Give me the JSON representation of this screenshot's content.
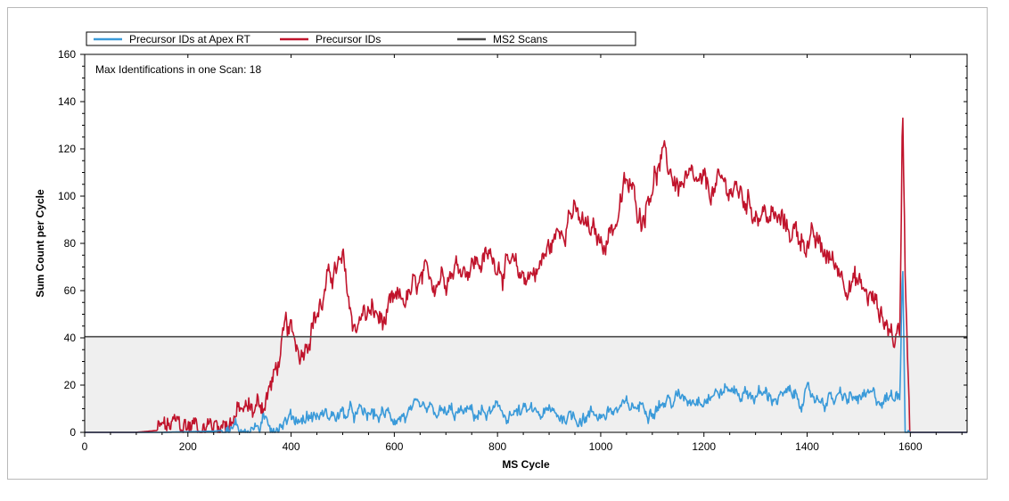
{
  "chart_data": {
    "type": "line",
    "xlabel": "MS Cycle",
    "ylabel": "Sum Count per Cycle",
    "xlim": [
      0,
      1710
    ],
    "ylim": [
      0,
      160
    ],
    "x_ticks": [
      0,
      200,
      400,
      600,
      800,
      1000,
      1200,
      1400,
      1600
    ],
    "y_ticks": [
      0,
      20,
      40,
      60,
      80,
      100,
      120,
      140,
      160
    ],
    "annotation": "Max Identifications in one Scan: 18",
    "legend_position": "top",
    "grid": false,
    "series": [
      {
        "name": "Precursor IDs at Apex RT",
        "color": "#3a9ad9",
        "x": [
          0,
          150,
          250,
          330,
          370,
          400,
          450,
          500,
          550,
          600,
          650,
          700,
          750,
          800,
          850,
          900,
          950,
          1000,
          1050,
          1100,
          1150,
          1200,
          1250,
          1300,
          1350,
          1400,
          1450,
          1500,
          1550,
          1570,
          1580,
          1585,
          1590,
          1600,
          1710
        ],
        "values": [
          0,
          0,
          0.5,
          2,
          4,
          6,
          7,
          7.5,
          7,
          7,
          7.5,
          7.5,
          8,
          8,
          8,
          7.5,
          7,
          8,
          10,
          12,
          14,
          16,
          18,
          16,
          15,
          15,
          14,
          14,
          14,
          15,
          20,
          76,
          2,
          0,
          0
        ],
        "noise": 3.2
      },
      {
        "name": "Precursor IDs",
        "color": "#c0142c",
        "x": [
          0,
          100,
          150,
          180,
          200,
          250,
          300,
          330,
          350,
          370,
          390,
          400,
          420,
          440,
          460,
          480,
          500,
          520,
          540,
          560,
          580,
          600,
          630,
          660,
          700,
          750,
          800,
          840,
          880,
          920,
          940,
          960,
          1000,
          1030,
          1050,
          1080,
          1100,
          1120,
          1150,
          1200,
          1250,
          1300,
          1350,
          1400,
          1450,
          1500,
          1530,
          1550,
          1570,
          1580,
          1585,
          1590,
          1600,
          1710
        ],
        "values": [
          0,
          0,
          1,
          2,
          3,
          3,
          8,
          10,
          14,
          25,
          42,
          40,
          35,
          48,
          55,
          68,
          70,
          45,
          50,
          50,
          46,
          52,
          58,
          62,
          70,
          72,
          74,
          65,
          70,
          85,
          96,
          88,
          80,
          90,
          105,
          92,
          108,
          115,
          105,
          102,
          104,
          95,
          88,
          82,
          72,
          62,
          55,
          48,
          40,
          42,
          145,
          70,
          0,
          0
        ],
        "noise": 5.5
      },
      {
        "name": "MS2 Scans",
        "color": "#4a4a4a",
        "x": [
          0,
          1710
        ],
        "values": [
          40.5,
          40.5
        ],
        "noise": 0
      }
    ]
  }
}
